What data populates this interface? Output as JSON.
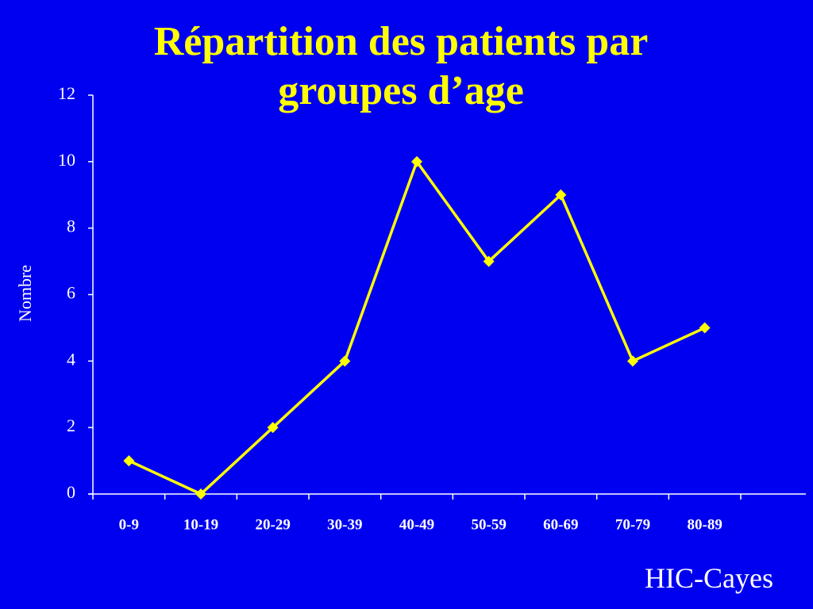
{
  "chart_data": {
    "type": "line",
    "title": "Répartition des patients par groupes d’age",
    "ylabel": "Nombre",
    "footer": "HIC-Cayes",
    "categories": [
      "0-9",
      "10-19",
      "20-29",
      "30-39",
      "40-49",
      "50-59",
      "60-69",
      "70-79",
      "80-89"
    ],
    "values": [
      1,
      0,
      2,
      4,
      10,
      7,
      9,
      4,
      5
    ],
    "color": "#ffff00",
    "ylim": [
      0,
      12
    ],
    "yticks": [
      0,
      2,
      4,
      6,
      8,
      10,
      12
    ],
    "grid": false
  }
}
